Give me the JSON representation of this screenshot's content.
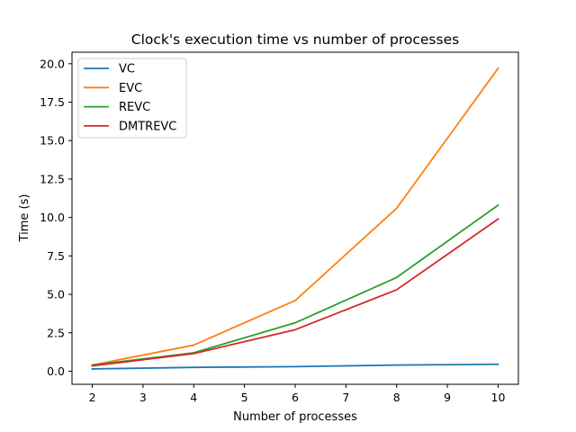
{
  "chart_data": {
    "type": "line",
    "title": "Clock's execution time vs number of processes",
    "xlabel": "Number of processes",
    "ylabel": "Time (s)",
    "x": [
      2,
      4,
      6,
      8,
      10
    ],
    "xticks": [
      2,
      3,
      4,
      5,
      6,
      7,
      8,
      9,
      10
    ],
    "yticks": [
      0.0,
      2.5,
      5.0,
      7.5,
      10.0,
      12.5,
      15.0,
      17.5,
      20.0
    ],
    "xtick_labels": [
      "2",
      "3",
      "4",
      "5",
      "6",
      "7",
      "8",
      "9",
      "10"
    ],
    "ytick_labels": [
      "0.0",
      "2.5",
      "5.0",
      "7.5",
      "10.0",
      "12.5",
      "15.0",
      "17.5",
      "20.0"
    ],
    "xlim": [
      1.6,
      10.4
    ],
    "ylim": [
      -0.85,
      20.75
    ],
    "grid": false,
    "legend_position": "top-left",
    "series": [
      {
        "name": "VC",
        "color": "#1f77b4",
        "values": [
          0.15,
          0.25,
          0.3,
          0.4,
          0.45
        ]
      },
      {
        "name": "EVC",
        "color": "#ff7f0e",
        "values": [
          0.4,
          1.7,
          4.6,
          10.6,
          19.7
        ]
      },
      {
        "name": "REVC",
        "color": "#2ca02c",
        "values": [
          0.4,
          1.2,
          3.15,
          6.1,
          10.8
        ]
      },
      {
        "name": "DMTREVC",
        "color": "#d62728",
        "values": [
          0.35,
          1.15,
          2.7,
          5.3,
          9.9
        ]
      }
    ]
  }
}
